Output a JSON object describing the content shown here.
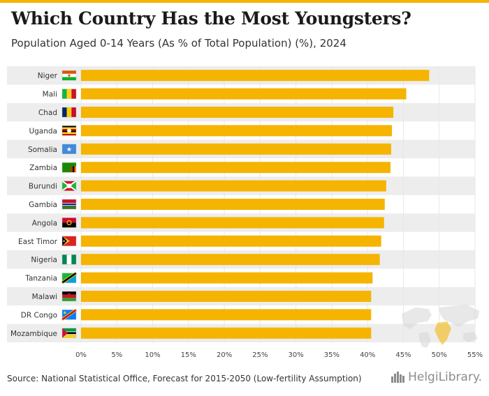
{
  "header": {
    "title": "Which Country Has the Most Youngsters?",
    "subtitle": "Population Aged 0-14 Years (As % of Total Population) (%), 2024"
  },
  "footer": {
    "source": "Source: National Statistical Office, Forecast for 2015-2050 (Low-fertility Assumption)",
    "brand": "HelgiLibrary."
  },
  "colors": {
    "bar": "#f5b400",
    "band": "#ededed",
    "grid": "#e8e8e8",
    "topbar": "#f5b400"
  },
  "chart_data": {
    "type": "bar",
    "orientation": "horizontal",
    "title": "Which Country Has the Most Youngsters?",
    "subtitle": "Population Aged 0-14 Years (As % of Total Population) (%), 2024",
    "xlabel": "",
    "ylabel": "",
    "categories": [
      "Niger",
      "Mali",
      "Chad",
      "Uganda",
      "Somalia",
      "Zambia",
      "Burundi",
      "Gambia",
      "Angola",
      "East Timor",
      "Nigeria",
      "Tanzania",
      "Malawi",
      "DR Congo",
      "Mozambique"
    ],
    "values": [
      48.6,
      45.4,
      43.6,
      43.4,
      43.3,
      43.2,
      42.6,
      42.4,
      42.3,
      41.9,
      41.7,
      40.7,
      40.5,
      40.5,
      40.5
    ],
    "xlim": [
      0,
      55
    ],
    "ticks": [
      0,
      5,
      10,
      15,
      20,
      25,
      30,
      35,
      40,
      45,
      50,
      55
    ],
    "tick_labels": [
      "0%",
      "5%",
      "10%",
      "15%",
      "20%",
      "25%",
      "30%",
      "35%",
      "40%",
      "45%",
      "50%",
      "55%"
    ],
    "grid": true,
    "flag_icons": [
      "niger-flag-icon",
      "mali-flag-icon",
      "chad-flag-icon",
      "uganda-flag-icon",
      "somalia-flag-icon",
      "zambia-flag-icon",
      "burundi-flag-icon",
      "gambia-flag-icon",
      "angola-flag-icon",
      "east-timor-flag-icon",
      "nigeria-flag-icon",
      "tanzania-flag-icon",
      "malawi-flag-icon",
      "dr-congo-flag-icon",
      "mozambique-flag-icon"
    ]
  }
}
